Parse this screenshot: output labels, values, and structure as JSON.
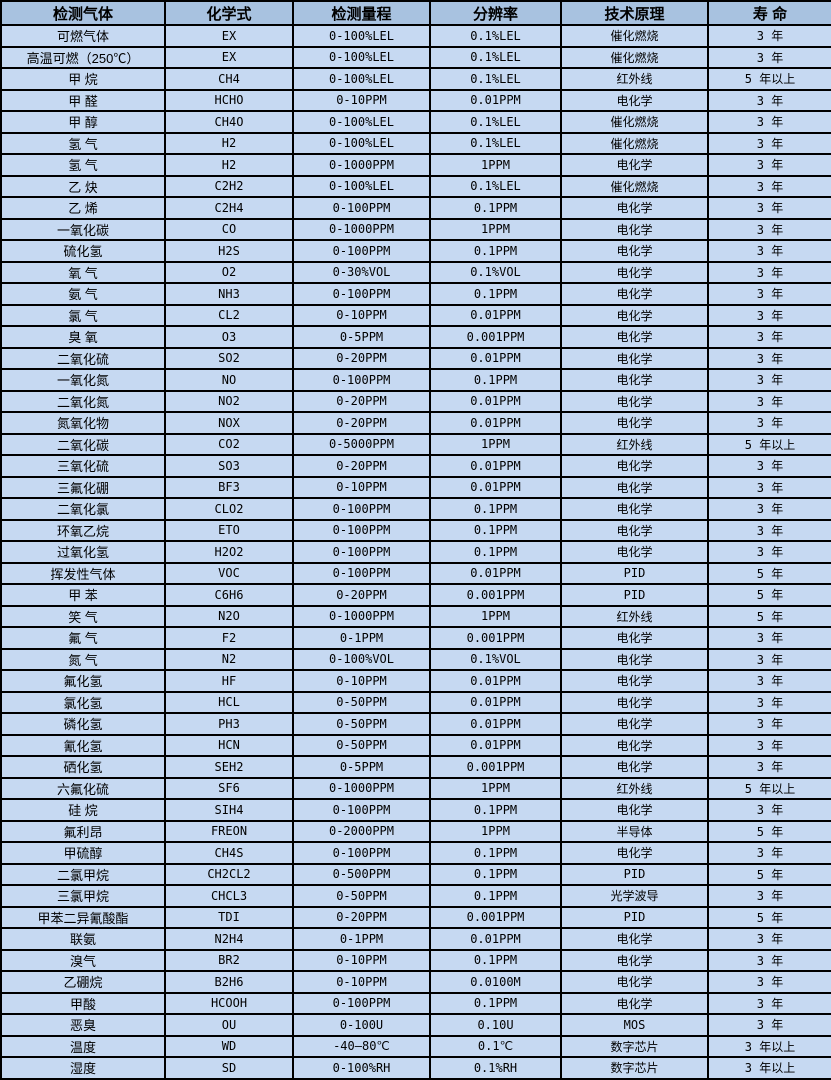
{
  "colors": {
    "header_bg": "#a8c2e0",
    "row_bg": "#c6d9f2",
    "border": "#000000",
    "text": "#000000"
  },
  "table": {
    "headers": [
      "检测气体",
      "化学式",
      "检测量程",
      "分辨率",
      "技术原理",
      "寿 命"
    ],
    "rows": [
      [
        "可燃气体",
        "EX",
        "0-100%LEL",
        "0.1%LEL",
        "催化燃烧",
        "3 年"
      ],
      [
        "高温可燃（250℃）",
        "EX",
        "0-100%LEL",
        "0.1%LEL",
        "催化燃烧",
        "3 年"
      ],
      [
        "甲 烷",
        "CH4",
        "0-100%LEL",
        "0.1%LEL",
        "红外线",
        "5 年以上"
      ],
      [
        "甲 醛",
        "HCHO",
        "0-10PPM",
        "0.01PPM",
        "电化学",
        "3 年"
      ],
      [
        "甲 醇",
        "CH4O",
        "0-100%LEL",
        "0.1%LEL",
        "催化燃烧",
        "3 年"
      ],
      [
        "氢 气",
        "H2",
        "0-100%LEL",
        "0.1%LEL",
        "催化燃烧",
        "3 年"
      ],
      [
        "氢 气",
        "H2",
        "0-1000PPM",
        "1PPM",
        "电化学",
        "3 年"
      ],
      [
        "乙 炔",
        "C2H2",
        "0-100%LEL",
        "0.1%LEL",
        "催化燃烧",
        "3 年"
      ],
      [
        "乙 烯",
        "C2H4",
        "0-100PPM",
        "0.1PPM",
        "电化学",
        "3 年"
      ],
      [
        "一氧化碳",
        "CO",
        "0-1000PPM",
        "1PPM",
        "电化学",
        "3 年"
      ],
      [
        "硫化氢",
        "H2S",
        "0-100PPM",
        "0.1PPM",
        "电化学",
        "3 年"
      ],
      [
        "氧 气",
        "O2",
        "0-30%VOL",
        "0.1%VOL",
        "电化学",
        "3 年"
      ],
      [
        "氨 气",
        "NH3",
        "0-100PPM",
        "0.1PPM",
        "电化学",
        "3 年"
      ],
      [
        "氯 气",
        "CL2",
        "0-10PPM",
        "0.01PPM",
        "电化学",
        "3 年"
      ],
      [
        "臭 氧",
        "O3",
        "0-5PPM",
        "0.001PPM",
        "电化学",
        "3 年"
      ],
      [
        "二氧化硫",
        "SO2",
        "0-20PPM",
        "0.01PPM",
        "电化学",
        "3 年"
      ],
      [
        "一氧化氮",
        "NO",
        "0-100PPM",
        "0.1PPM",
        "电化学",
        "3 年"
      ],
      [
        "二氧化氮",
        "NO2",
        "0-20PPM",
        "0.01PPM",
        "电化学",
        "3 年"
      ],
      [
        "氮氧化物",
        "NOX",
        "0-20PPM",
        "0.01PPM",
        "电化学",
        "3 年"
      ],
      [
        "二氧化碳",
        "CO2",
        "0-5000PPM",
        "1PPM",
        "红外线",
        "5 年以上"
      ],
      [
        "三氧化硫",
        "SO3",
        "0-20PPM",
        "0.01PPM",
        "电化学",
        "3 年"
      ],
      [
        "三氟化硼",
        "BF3",
        "0-10PPM",
        "0.01PPM",
        "电化学",
        "3 年"
      ],
      [
        "二氧化氯",
        "CLO2",
        "0-100PPM",
        "0.1PPM",
        "电化学",
        "3 年"
      ],
      [
        "环氧乙烷",
        "ETO",
        "0-100PPM",
        "0.1PPM",
        "电化学",
        "3 年"
      ],
      [
        "过氧化氢",
        "H2O2",
        "0-100PPM",
        "0.1PPM",
        "电化学",
        "3 年"
      ],
      [
        "挥发性气体",
        "VOC",
        "0-100PPM",
        "0.01PPM",
        "PID",
        "5 年"
      ],
      [
        "甲 苯",
        "C6H6",
        "0-20PPM",
        "0.001PPM",
        "PID",
        "5 年"
      ],
      [
        "笑 气",
        "N2O",
        "0-1000PPM",
        "1PPM",
        "红外线",
        "5 年"
      ],
      [
        "氟 气",
        "F2",
        "0-1PPM",
        "0.001PPM",
        "电化学",
        "3 年"
      ],
      [
        "氮 气",
        "N2",
        "0-100%VOL",
        "0.1%VOL",
        "电化学",
        "3 年"
      ],
      [
        "氟化氢",
        "HF",
        "0-10PPM",
        "0.01PPM",
        "电化学",
        "3 年"
      ],
      [
        "氯化氢",
        "HCL",
        "0-50PPM",
        "0.01PPM",
        "电化学",
        "3 年"
      ],
      [
        "磷化氢",
        "PH3",
        "0-50PPM",
        "0.01PPM",
        "电化学",
        "3 年"
      ],
      [
        "氰化氢",
        "HCN",
        "0-50PPM",
        "0.01PPM",
        "电化学",
        "3 年"
      ],
      [
        "硒化氢",
        "SEH2",
        "0-5PPM",
        "0.001PPM",
        "电化学",
        "3 年"
      ],
      [
        "六氟化硫",
        "SF6",
        "0-1000PPM",
        "1PPM",
        "红外线",
        "5 年以上"
      ],
      [
        "硅 烷",
        "SIH4",
        "0-100PPM",
        "0.1PPM",
        "电化学",
        "3 年"
      ],
      [
        "氟利昂",
        "FREON",
        "0-2000PPM",
        "1PPM",
        "半导体",
        "5 年"
      ],
      [
        "甲硫醇",
        "CH4S",
        "0-100PPM",
        "0.1PPM",
        "电化学",
        "3 年"
      ],
      [
        "二氯甲烷",
        "CH2CL2",
        "0-500PPM",
        "0.1PPM",
        "PID",
        "5 年"
      ],
      [
        "三氯甲烷",
        "CHCL3",
        "0-50PPM",
        "0.1PPM",
        "光学波导",
        "3 年"
      ],
      [
        "甲苯二异氰酸酯",
        "TDI",
        "0-20PPM",
        "0.001PPM",
        "PID",
        "5 年"
      ],
      [
        "联氨",
        "N2H4",
        "0-1PPM",
        "0.01PPM",
        "电化学",
        "3 年"
      ],
      [
        "溴气",
        "BR2",
        "0-10PPM",
        "0.1PPM",
        "电化学",
        "3 年"
      ],
      [
        "乙硼烷",
        "B2H6",
        "0-10PPM",
        "0.0100M",
        "电化学",
        "3 年"
      ],
      [
        "甲酸",
        "HCOOH",
        "0-100PPM",
        "0.1PPM",
        "电化学",
        "3 年"
      ],
      [
        "恶臭",
        "OU",
        "0-100U",
        "0.10U",
        "MOS",
        "3 年"
      ],
      [
        "温度",
        "WD",
        "-40—80℃",
        "0.1℃",
        "数字芯片",
        "3 年以上"
      ],
      [
        "湿度",
        "SD",
        "0-100%RH",
        "0.1%RH",
        "数字芯片",
        "3 年以上"
      ]
    ],
    "column_keys": [
      "gas",
      "formula",
      "range",
      "resolution",
      "principle",
      "lifespan"
    ]
  }
}
